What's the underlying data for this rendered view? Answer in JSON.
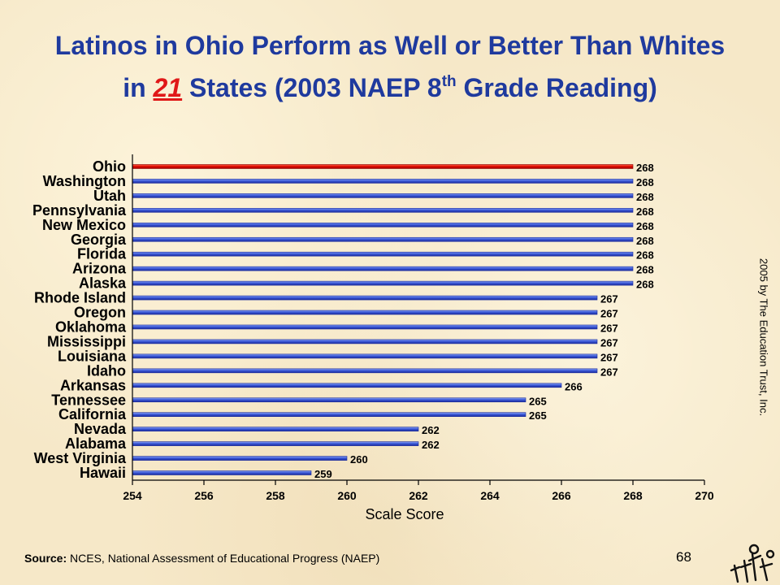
{
  "title": {
    "line1": "Latinos in Ohio Perform as Well  or Better Than Whites",
    "line2_prefix": "in",
    "line2_number": "21",
    "line2_mid": "States  (2003 NAEP 8",
    "line2_sup": "th",
    "line2_suffix": "Grade Reading)"
  },
  "chart_data": {
    "type": "bar",
    "orientation": "horizontal",
    "categories": [
      "Ohio",
      "Washington",
      "Utah",
      "Pennsylvania",
      "New Mexico",
      "Georgia",
      "Florida",
      "Arizona",
      "Alaska",
      "Rhode Island",
      "Oregon",
      "Oklahoma",
      "Mississippi",
      "Louisiana",
      "Idaho",
      "Arkansas",
      "Tennessee",
      "California",
      "Nevada",
      "Alabama",
      "West Virginia",
      "Hawaii"
    ],
    "values": [
      268,
      268,
      268,
      268,
      268,
      268,
      268,
      268,
      268,
      267,
      267,
      267,
      267,
      267,
      267,
      266,
      265,
      265,
      262,
      262,
      260,
      259
    ],
    "highlight_category": "Ohio",
    "xlabel": "Scale Score",
    "ylabel": "",
    "xlim": [
      254,
      270
    ],
    "xticks": [
      254,
      256,
      258,
      260,
      262,
      264,
      266,
      268,
      270
    ],
    "grid": false,
    "legend": "none",
    "colors": {
      "bar": "#3c5ad8",
      "bar_dark": "#1a2a9c",
      "highlight": "#e00c00"
    }
  },
  "footer": {
    "source_label": "Source:",
    "source_text": " NCES, National Assessment of Educational Progress (NAEP)",
    "page_number": "68",
    "copyright": "2005  by The Education Trust, Inc."
  },
  "logo_icon": "education-trust-logo-icon"
}
